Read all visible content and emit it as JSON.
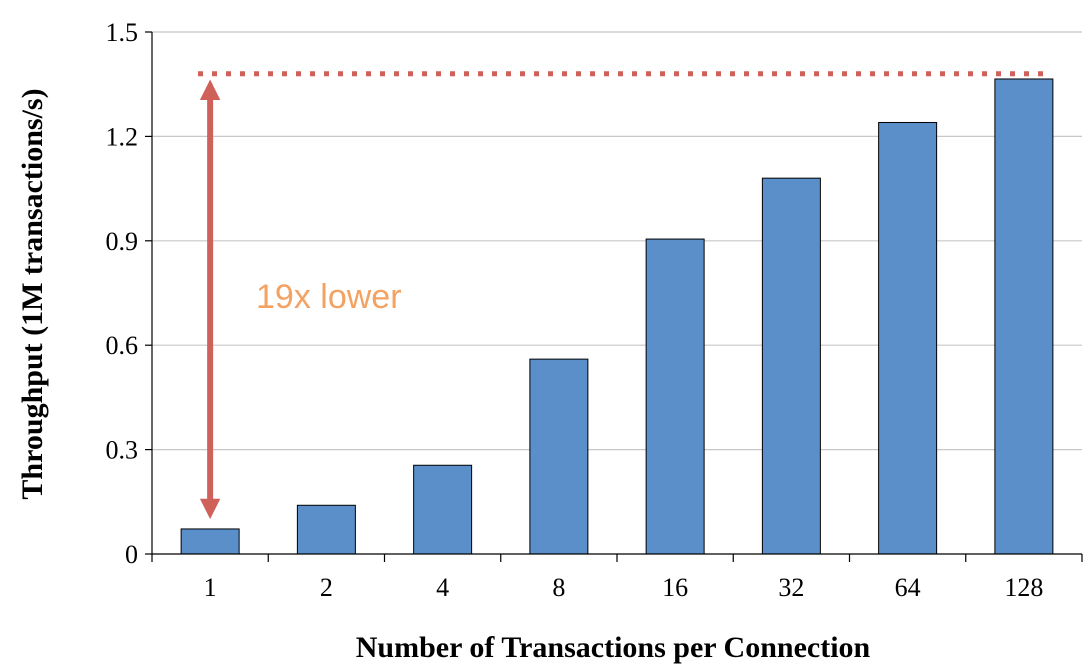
{
  "chart_data": {
    "type": "bar",
    "title": "",
    "xlabel": "Number of Transactions per Connection",
    "ylabel": "Throughput (1M transactions/s)",
    "categories": [
      "1",
      "2",
      "4",
      "8",
      "16",
      "32",
      "64",
      "128"
    ],
    "values": [
      0.072,
      0.14,
      0.255,
      0.56,
      0.905,
      1.08,
      1.24,
      1.365
    ],
    "ylim": [
      0,
      1.5
    ],
    "yticks": [
      0,
      0.3,
      0.6,
      0.9,
      1.2,
      1.5
    ],
    "ytick_labels": [
      "0",
      "0.3",
      "0.6",
      "0.9",
      "1.2",
      "1.5"
    ],
    "grid": "horizontal",
    "legend": "none",
    "reference_line": {
      "value": 1.38,
      "style": "dotted"
    },
    "annotation": {
      "text": "19x lower",
      "arrow_from": 0.072,
      "arrow_to": 1.38
    },
    "colors": {
      "bar_fill": "#5b8fc9",
      "bar_stroke": "#000000",
      "grid": "#c8c8c8",
      "reference_line": "#d0605a",
      "arrow": "#d0605a",
      "annotation_text": "#f4a262"
    }
  }
}
